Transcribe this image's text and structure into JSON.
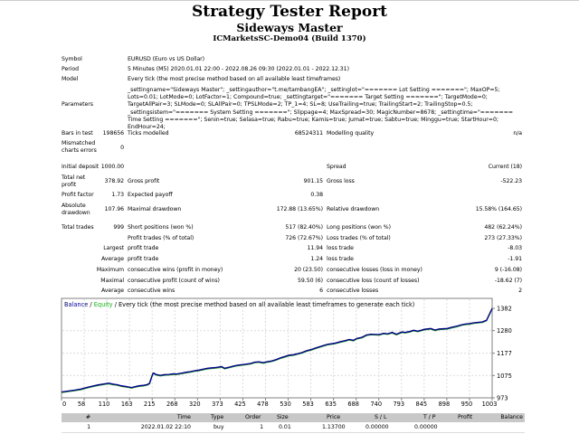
{
  "report": {
    "title": "Strategy Tester Report",
    "expert": "Sideways Master",
    "server": "ICMarketsSC-Demo04 (Build 1370)"
  },
  "info": {
    "symbol_label": "Symbol",
    "symbol_value": "EURUSD (Euro vs US Dollar)",
    "period_label": "Period",
    "period_value": "5 Minutes (M5) 2020.01.01 22:00 - 2022.08.26 09:30 (2022.01.01 - 2022.12.31)",
    "model_label": "Model",
    "model_value": "Every tick (the most precise method based on all available least timeframes)",
    "parameters_label": "Parameters",
    "parameters_value": "_settingname=\"Sideways Master\"; _settingauthor=\"t.me/tambangEA\"; _settinglot=\"======= Lot Setting =======\"; MaxOP=5; Lots=0.01; LotMode=0; LotFactor=1; Compound=true; _settingtarget=\"======= Target Setting =======\"; TargetMode=0; TargetAllPair=3; SLMode=0; SLAllPair=0; TPSLMode=2; TP_1=4; SL=8; UseTrailing=true; TrailingStart=2; TrailingStop=0.5; _settingsistem=\"======= System Setting =======\"; Slippage=4; MaxSpread=30; MagicNumber=8678; _settingtime=\"======= Time Setting =======\"; Senin=true; Selasa=true; Rabu=true; Kamis=true; Jumat=true; Sabtu=true; Minggu=true; StartHour=0; EndHour=24;",
    "bars_label": "Bars in test",
    "bars_value": "198656",
    "ticks_label": "Ticks modelled",
    "ticks_value": "68524311",
    "quality_label": "Modelling quality",
    "quality_value": "n/a",
    "mismatch_label_1": "Mismatched",
    "mismatch_label_2": "charts errors",
    "mismatch_value": "0"
  },
  "results": {
    "initial_deposit_label": "Initial deposit",
    "initial_deposit": "1000.00",
    "spread_label": "Spread",
    "spread_value": "Current (18)",
    "net_profit_label_1": "Total net",
    "net_profit_label_2": "profit",
    "net_profit": "378.92",
    "gross_profit_label": "Gross profit",
    "gross_profit": "901.15",
    "gross_loss_label": "Gross loss",
    "gross_loss": "-522.23",
    "profit_factor_label": "Profit factor",
    "profit_factor": "1.73",
    "expected_payoff_label": "Expected payoff",
    "expected_payoff": "0.38",
    "abs_dd_label_1": "Absolute",
    "abs_dd_label_2": "drawdown",
    "abs_dd": "107.96",
    "max_dd_label": "Maximal drawdown",
    "max_dd": "172.88 (13.65%)",
    "rel_dd_label": "Relative drawdown",
    "rel_dd": "15.58% (164.65)",
    "total_trades_label": "Total trades",
    "total_trades": "999",
    "short_label": "Short positions (won %)",
    "short_value": "517 (82.40%)",
    "long_label": "Long positions (won %)",
    "long_value": "482 (62.24%)",
    "profit_trades_label": "Profit trades (% of total)",
    "profit_trades": "726 (72.67%)",
    "loss_trades_label": "Loss trades (% of total)",
    "loss_trades": "273 (27.33%)",
    "largest_label": "Largest",
    "largest_profit_label": "profit trade",
    "largest_profit": "11.94",
    "largest_loss_label": "loss trade",
    "largest_loss": "-8.03",
    "average_label": "Average",
    "average_profit_label": "profit trade",
    "average_profit": "1.24",
    "average_loss_label": "loss trade",
    "average_loss": "-1.91",
    "maximum_label": "Maximum",
    "max_cons_wins_label": "consecutive wins (profit in money)",
    "max_cons_wins": "20 (23.50)",
    "max_cons_losses_label": "consecutive losses (loss in money)",
    "max_cons_losses": "9 (-16.08)",
    "maximal_label": "Maximal",
    "maximal_cons_profit_label": "consecutive profit (count of wins)",
    "maximal_cons_profit": "59.50 (6)",
    "maximal_cons_loss_label": "consecutive loss (count of losses)",
    "maximal_cons_loss": "-18.62 (7)",
    "average2_label": "Average",
    "avg_cons_wins_label": "consecutive wins",
    "avg_cons_wins": "6",
    "avg_cons_losses_label": "consecutive losses",
    "avg_cons_losses": "2"
  },
  "chart_data": {
    "type": "line",
    "title_balance": "Balance",
    "title_sep1": " / ",
    "title_equity": "Equity",
    "title_rest": " / Every tick (the most precise method based on all available least timeframes to generate each tick)",
    "xlabel": "",
    "ylabel": "",
    "x_ticks": [
      "0",
      "58",
      "110",
      "163",
      "215",
      "268",
      "320",
      "373",
      "425",
      "478",
      "530",
      "583",
      "635",
      "688",
      "740",
      "793",
      "845",
      "898",
      "950",
      "1003"
    ],
    "y_ticks": [
      "1382",
      "1280",
      "1177",
      "1075",
      "973"
    ],
    "xlim": [
      0,
      1003
    ],
    "ylim": [
      973,
      1382
    ],
    "grid": true,
    "colors": {
      "balance": "#00008b",
      "equity": "#228b22",
      "title_balance": "#00008b",
      "title_equity": "#22aa22"
    },
    "series": [
      {
        "name": "Balance",
        "x": [
          0,
          15,
          30,
          45,
          58,
          70,
          85,
          100,
          110,
          120,
          130,
          140,
          150,
          163,
          170,
          180,
          190,
          200,
          205,
          210,
          213,
          215,
          220,
          230,
          240,
          250,
          260,
          268,
          280,
          290,
          300,
          310,
          320,
          330,
          340,
          350,
          360,
          373,
          380,
          390,
          400,
          410,
          425,
          440,
          450,
          460,
          470,
          478,
          490,
          500,
          510,
          520,
          530,
          540,
          550,
          560,
          570,
          583,
          590,
          600,
          610,
          620,
          635,
          650,
          660,
          670,
          680,
          688,
          700,
          710,
          720,
          740,
          750,
          760,
          770,
          780,
          793,
          800,
          810,
          820,
          830,
          845,
          860,
          870,
          880,
          898,
          910,
          920,
          930,
          940,
          950,
          960,
          970,
          980,
          990,
          1003
        ],
        "y": [
          1000,
          1004,
          1008,
          1013,
          1020,
          1026,
          1032,
          1037,
          1040,
          1036,
          1033,
          1028,
          1025,
          1020,
          1024,
          1028,
          1030,
          1034,
          1040,
          1070,
          1085,
          1086,
          1080,
          1076,
          1079,
          1080,
          1083,
          1082,
          1086,
          1090,
          1093,
          1097,
          1100,
          1104,
          1108,
          1110,
          1112,
          1116,
          1108,
          1113,
          1118,
          1122,
          1126,
          1130,
          1136,
          1138,
          1134,
          1138,
          1142,
          1148,
          1156,
          1162,
          1168,
          1170,
          1175,
          1180,
          1188,
          1195,
          1200,
          1206,
          1212,
          1218,
          1222,
          1230,
          1234,
          1240,
          1236,
          1245,
          1250,
          1260,
          1264,
          1262,
          1268,
          1266,
          1272,
          1264,
          1274,
          1272,
          1276,
          1282,
          1278,
          1286,
          1290,
          1283,
          1288,
          1290,
          1296,
          1300,
          1306,
          1310,
          1312,
          1316,
          1318,
          1320,
          1328,
          1382
        ]
      }
    ]
  },
  "trades_table": {
    "headers": [
      "#",
      "Time",
      "Type",
      "Order",
      "Size",
      "Price",
      "S / L",
      "T / P",
      "Profit",
      "Balance"
    ],
    "rows": [
      [
        "1",
        "2022.01.02 22:10",
        "buy",
        "1",
        "0.01",
        "1.13700",
        "0.00000",
        "0.00000",
        "",
        ""
      ]
    ]
  }
}
